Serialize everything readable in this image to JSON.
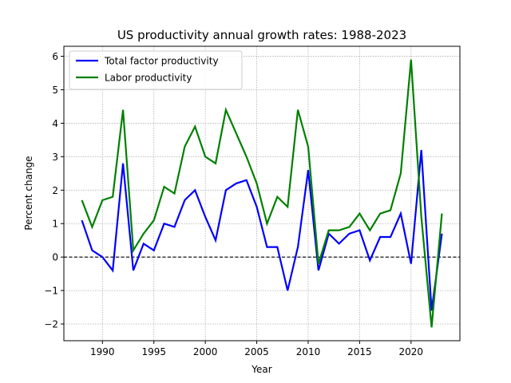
{
  "chart_data": {
    "type": "line",
    "title": "US productivity annual growth rates: 1988-2023",
    "xlabel": "Year",
    "ylabel": "Percent change",
    "xlim": [
      1986.25,
      2024.75
    ],
    "ylim": [
      -2.5,
      6.3
    ],
    "xticks": [
      1990,
      1995,
      2000,
      2005,
      2010,
      2015,
      2020
    ],
    "yticks": [
      -2,
      -1,
      0,
      1,
      2,
      3,
      4,
      5,
      6
    ],
    "ytick_labels": [
      "−2",
      "−1",
      "0",
      "1",
      "2",
      "3",
      "4",
      "5",
      "6"
    ],
    "grid": true,
    "zero_line": true,
    "legend_position": "upper-left",
    "x": [
      1988,
      1989,
      1990,
      1991,
      1992,
      1993,
      1994,
      1995,
      1996,
      1997,
      1998,
      1999,
      2000,
      2001,
      2002,
      2003,
      2004,
      2005,
      2006,
      2007,
      2008,
      2009,
      2010,
      2011,
      2012,
      2013,
      2014,
      2015,
      2016,
      2017,
      2018,
      2019,
      2020,
      2021,
      2022,
      2023
    ],
    "series": [
      {
        "name": "Total factor productivity",
        "color": "#0000ff",
        "values": [
          1.1,
          0.2,
          0.0,
          -0.4,
          2.8,
          -0.4,
          0.4,
          0.2,
          1.0,
          0.9,
          1.7,
          2.0,
          1.2,
          0.5,
          2.0,
          2.2,
          2.3,
          1.5,
          0.3,
          0.3,
          -1.0,
          0.3,
          2.6,
          -0.4,
          0.7,
          0.4,
          0.7,
          0.8,
          -0.1,
          0.6,
          0.6,
          1.3,
          -0.2,
          3.2,
          -1.6,
          0.7
        ]
      },
      {
        "name": "Labor productivity",
        "color": "#008000",
        "values": [
          1.7,
          0.9,
          1.7,
          1.8,
          4.4,
          0.2,
          0.7,
          1.1,
          2.1,
          1.9,
          3.3,
          3.9,
          3.0,
          2.8,
          4.4,
          3.7,
          3.0,
          2.2,
          1.0,
          1.8,
          1.5,
          4.4,
          3.3,
          -0.2,
          0.8,
          0.8,
          0.9,
          1.3,
          0.8,
          1.3,
          1.4,
          2.5,
          5.9,
          1.2,
          -2.1,
          1.3
        ]
      }
    ]
  }
}
